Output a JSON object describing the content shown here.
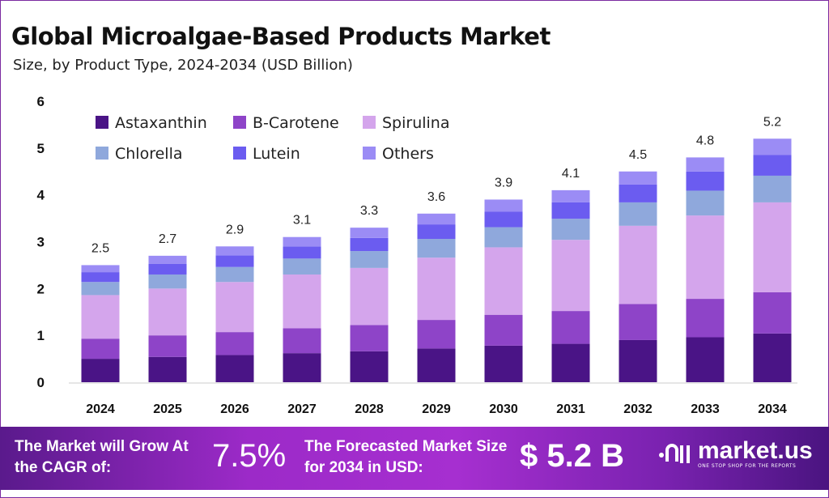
{
  "header": {
    "title": "Global Microalgae-Based Products Market",
    "subtitle": "Size, by Product Type, 2024-2034 (USD Billion)"
  },
  "chart_data": {
    "type": "bar",
    "stacked": true,
    "title": "Global Microalgae-Based Products Market",
    "subtitle": "Size, by Product Type, 2024-2034 (USD Billion)",
    "xlabel": "",
    "ylabel": "",
    "ylim": [
      0,
      6
    ],
    "yticks": [
      "0",
      "1",
      "2",
      "3",
      "4",
      "5",
      "6"
    ],
    "grid": false,
    "legend_position": "top-left",
    "categories": [
      "2024",
      "2025",
      "2026",
      "2027",
      "2028",
      "2029",
      "2030",
      "2031",
      "2032",
      "2033",
      "2034"
    ],
    "totals": [
      "2.5",
      "2.7",
      "2.9",
      "3.1",
      "3.3",
      "3.6",
      "3.9",
      "4.1",
      "4.5",
      "4.8",
      "5.2"
    ],
    "series": [
      {
        "name": "Astaxanthin",
        "color": "#4a1486",
        "values": [
          0.5,
          0.54,
          0.58,
          0.62,
          0.66,
          0.72,
          0.78,
          0.82,
          0.9,
          0.96,
          1.04
        ]
      },
      {
        "name": "B-Carotene",
        "color": "#8e44c8",
        "values": [
          0.43,
          0.46,
          0.49,
          0.53,
          0.56,
          0.61,
          0.66,
          0.7,
          0.77,
          0.82,
          0.88
        ]
      },
      {
        "name": "Spirulina",
        "color": "#d4a5ec",
        "values": [
          0.93,
          1.0,
          1.07,
          1.15,
          1.22,
          1.33,
          1.44,
          1.52,
          1.67,
          1.78,
          1.92
        ]
      },
      {
        "name": "Chlorella",
        "color": "#8fa8dc",
        "values": [
          0.28,
          0.3,
          0.32,
          0.34,
          0.36,
          0.4,
          0.43,
          0.45,
          0.5,
          0.53,
          0.57
        ]
      },
      {
        "name": "Lutein",
        "color": "#6b5cf0",
        "values": [
          0.21,
          0.23,
          0.25,
          0.26,
          0.28,
          0.31,
          0.33,
          0.35,
          0.38,
          0.41,
          0.44
        ]
      },
      {
        "name": "Others",
        "color": "#9b8cf5",
        "values": [
          0.15,
          0.17,
          0.19,
          0.2,
          0.22,
          0.23,
          0.26,
          0.26,
          0.28,
          0.3,
          0.35
        ]
      }
    ]
  },
  "footer": {
    "cagr_label": "The Market will Grow At the CAGR of:",
    "cagr_value": "7.5%",
    "forecast_label": "The Forecasted Market Size for 2034 in USD:",
    "forecast_value": "$ 5.2 B",
    "logo_name": "market.us",
    "logo_tagline": "ONE STOP SHOP FOR THE REPORTS"
  }
}
